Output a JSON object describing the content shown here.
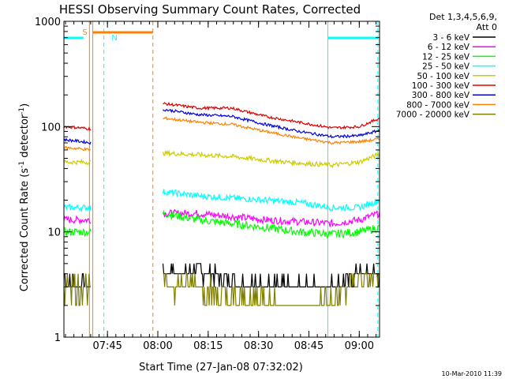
{
  "chart_data": {
    "type": "line",
    "title": "HESSI Observing Summary Count Rates, Corrected",
    "xlabel": "Start Time (27-Jan-08 07:32:02)",
    "ylabel": "Corrected Count Rate (s⁻¹ detector⁻¹)",
    "yscale": "log",
    "ylim": [
      1,
      1000
    ],
    "xlim_minutes_after_0732": [
      0,
      94
    ],
    "x_ticks": [
      "07:45",
      "08:00",
      "08:15",
      "08:30",
      "08:45",
      "09:00"
    ],
    "y_ticks": [
      "1",
      "10",
      "100",
      "1000"
    ],
    "legend_title": [
      "Det 1,3,4,5,6,9,",
      "Att 0"
    ],
    "legend_position": "right",
    "footer_timestamp": "10-Mar-2010 11:39",
    "annotations": {
      "saa_label": "S",
      "night_label": "N"
    },
    "segments_x": [
      [
        0,
        8
      ],
      [
        29.5,
        94
      ]
    ],
    "series": [
      {
        "name": "3 - 6 keV",
        "color": "#000000",
        "values": [
          [
            0,
            3.5
          ],
          [
            4,
            3.2
          ],
          [
            8,
            3.0
          ],
          [
            30,
            4.0
          ],
          [
            40,
            4.2
          ],
          [
            50,
            3.5
          ],
          [
            60,
            3.0
          ],
          [
            70,
            3.0
          ],
          [
            80,
            3.0
          ],
          [
            88,
            4.0
          ],
          [
            94,
            4.0
          ]
        ]
      },
      {
        "name": "6 - 12 keV",
        "color": "#ff00ff",
        "values": [
          [
            0,
            13
          ],
          [
            4,
            13
          ],
          [
            8,
            13
          ],
          [
            30,
            15
          ],
          [
            40,
            15
          ],
          [
            50,
            14
          ],
          [
            60,
            13
          ],
          [
            70,
            12.5
          ],
          [
            80,
            12
          ],
          [
            88,
            13
          ],
          [
            94,
            15
          ]
        ]
      },
      {
        "name": "12 - 25 keV",
        "color": "#00ff00",
        "values": [
          [
            0,
            10
          ],
          [
            4,
            10
          ],
          [
            8,
            10
          ],
          [
            30,
            15
          ],
          [
            40,
            13
          ],
          [
            50,
            12
          ],
          [
            60,
            11
          ],
          [
            70,
            10
          ],
          [
            80,
            9.5
          ],
          [
            88,
            10
          ],
          [
            94,
            11
          ]
        ]
      },
      {
        "name": "25 - 50 keV",
        "color": "#00ffff",
        "values": [
          [
            0,
            17
          ],
          [
            4,
            17
          ],
          [
            8,
            17
          ],
          [
            30,
            24
          ],
          [
            40,
            22
          ],
          [
            50,
            21
          ],
          [
            60,
            20
          ],
          [
            70,
            19
          ],
          [
            80,
            17
          ],
          [
            88,
            17
          ],
          [
            94,
            20
          ]
        ]
      },
      {
        "name": "50 - 100 keV",
        "color": "#cccc00",
        "values": [
          [
            0,
            46
          ],
          [
            4,
            46
          ],
          [
            8,
            46
          ],
          [
            30,
            56
          ],
          [
            40,
            54
          ],
          [
            50,
            52
          ],
          [
            60,
            48
          ],
          [
            70,
            45
          ],
          [
            80,
            43
          ],
          [
            88,
            46
          ],
          [
            94,
            55
          ]
        ]
      },
      {
        "name": "100 - 300 keV",
        "color": "#dd0000",
        "values": [
          [
            0,
            100
          ],
          [
            4,
            98
          ],
          [
            8,
            95
          ],
          [
            30,
            165
          ],
          [
            40,
            150
          ],
          [
            50,
            150
          ],
          [
            60,
            125
          ],
          [
            70,
            110
          ],
          [
            80,
            97
          ],
          [
            88,
            100
          ],
          [
            94,
            120
          ]
        ]
      },
      {
        "name": "300 - 800 keV",
        "color": "#0000dd",
        "values": [
          [
            0,
            75
          ],
          [
            4,
            73
          ],
          [
            8,
            70
          ],
          [
            30,
            145
          ],
          [
            40,
            130
          ],
          [
            50,
            125
          ],
          [
            60,
            105
          ],
          [
            70,
            90
          ],
          [
            80,
            80
          ],
          [
            88,
            82
          ],
          [
            94,
            92
          ]
        ]
      },
      {
        "name": "800 - 7000 keV",
        "color": "#ff8000",
        "values": [
          [
            0,
            63
          ],
          [
            4,
            62
          ],
          [
            8,
            60
          ],
          [
            30,
            120
          ],
          [
            40,
            110
          ],
          [
            50,
            105
          ],
          [
            60,
            90
          ],
          [
            70,
            78
          ],
          [
            80,
            70
          ],
          [
            88,
            72
          ],
          [
            94,
            76
          ]
        ]
      },
      {
        "name": "7000 - 20000 keV",
        "color": "#808000",
        "values": [
          [
            0,
            3.0
          ],
          [
            4,
            3.0
          ],
          [
            8,
            3.0
          ],
          [
            30,
            3.0
          ],
          [
            40,
            3.2
          ],
          [
            50,
            2.2
          ],
          [
            60,
            2.2
          ],
          [
            70,
            1.8
          ],
          [
            80,
            2.2
          ],
          [
            88,
            3.5
          ],
          [
            94,
            4.0
          ]
        ]
      }
    ]
  }
}
